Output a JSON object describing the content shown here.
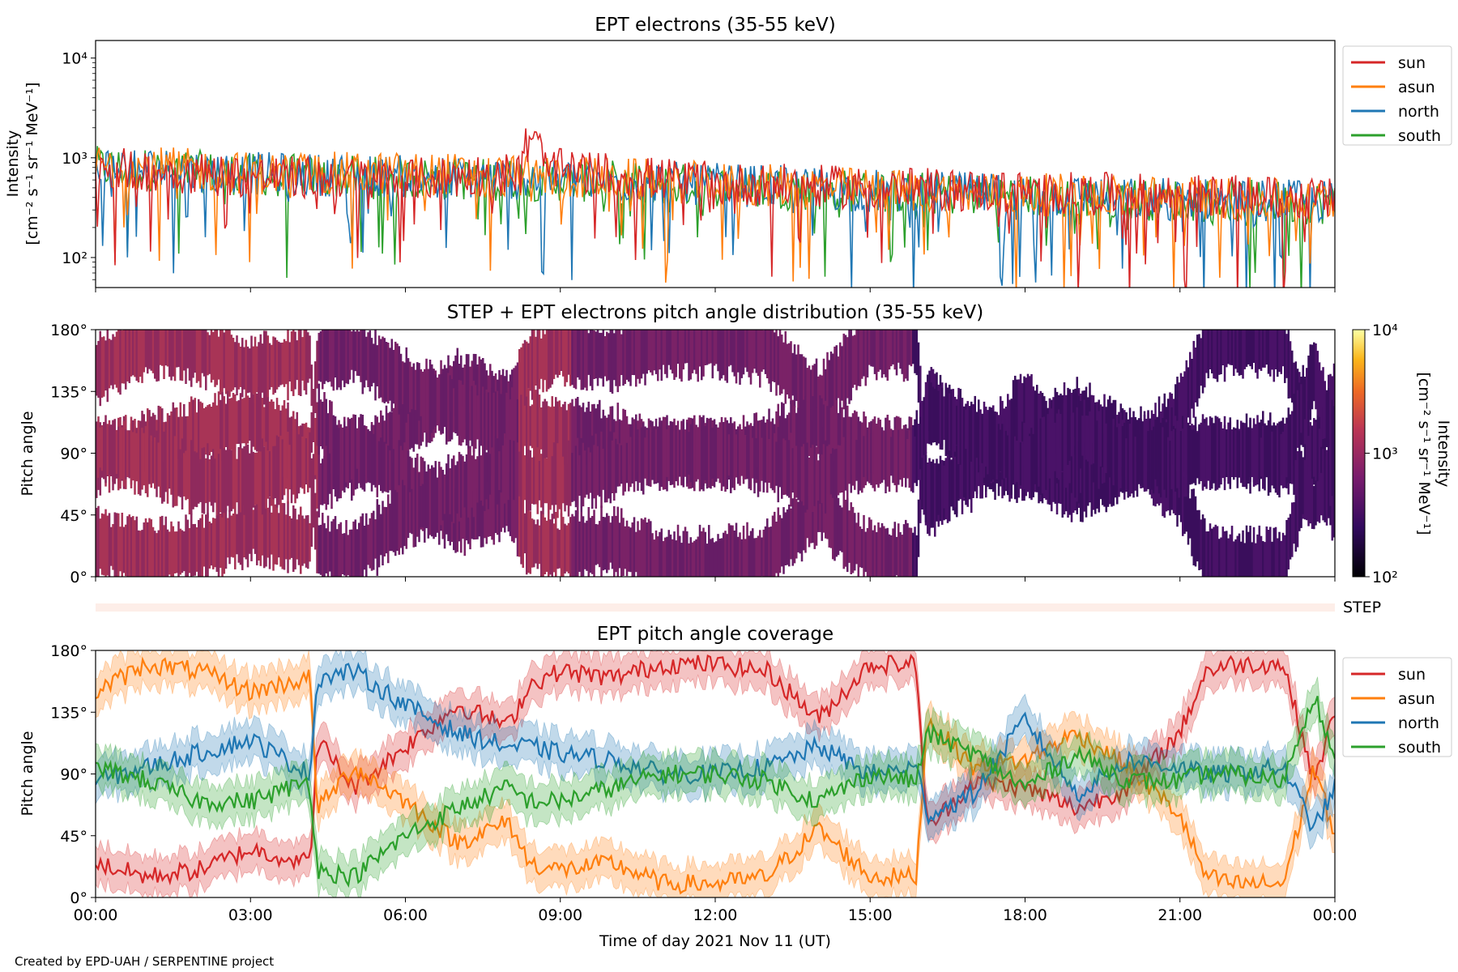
{
  "credit": "Created by EPD-UAH / SERPENTINE project",
  "xlabel": "Time of day 2021 Nov 11 (UT)",
  "x_ticks": [
    "00:00",
    "03:00",
    "06:00",
    "09:00",
    "12:00",
    "15:00",
    "18:00",
    "21:00",
    "00:00"
  ],
  "colors": {
    "sun": "#d62728",
    "asun": "#ff7f0e",
    "north": "#1f77b4",
    "south": "#2ca02c"
  },
  "chart_data": [
    {
      "type": "line",
      "title": "EPT electrons (35-55 keV)",
      "ylabel_line1": "Intensity",
      "ylabel_line2": "[cm⁻² s⁻¹ sr⁻¹ MeV⁻¹]",
      "yscale": "log",
      "ylim": [
        50,
        15000
      ],
      "y_ticks": [
        100,
        1000,
        10000
      ],
      "y_tick_labels": [
        "10²",
        "10³",
        "10⁴"
      ],
      "xlim_hours": [
        0,
        24
      ],
      "legend": [
        "sun",
        "asun",
        "north",
        "south"
      ],
      "legend_position": "outside-right",
      "series": [
        {
          "name": "sun",
          "trend_hours": [
            0,
            3,
            6,
            9,
            12,
            15,
            18,
            21,
            24
          ],
          "trend_values": [
            800,
            650,
            600,
            750,
            550,
            500,
            450,
            420,
            380
          ]
        },
        {
          "name": "asun",
          "trend_hours": [
            0,
            3,
            6,
            9,
            12,
            15,
            18,
            21,
            24
          ],
          "trend_values": [
            850,
            700,
            700,
            650,
            550,
            480,
            430,
            400,
            370
          ]
        },
        {
          "name": "north",
          "trend_hours": [
            0,
            3,
            6,
            9,
            12,
            15,
            18,
            21,
            24
          ],
          "trend_values": [
            820,
            700,
            650,
            600,
            540,
            470,
            420,
            390,
            360
          ]
        },
        {
          "name": "south",
          "trend_hours": [
            0,
            3,
            6,
            9,
            12,
            15,
            18,
            21,
            24
          ],
          "trend_values": [
            800,
            680,
            620,
            600,
            520,
            460,
            410,
            380,
            350
          ]
        }
      ]
    },
    {
      "type": "heatmap",
      "title": "STEP + EPT electrons pitch angle distribution (35-55 keV)",
      "ylabel": "Pitch angle",
      "y_ticks": [
        "0°",
        "45°",
        "90°",
        "135°",
        "180°"
      ],
      "ylim": [
        0,
        180
      ],
      "colorbar_label_line1": "Intensity",
      "colorbar_label_line2": "[cm⁻² s⁻¹ sr⁻¹ MeV⁻¹]",
      "colorbar_range": [
        100,
        10000
      ],
      "colorbar_ticks": [
        "10²",
        "10³",
        "10⁴"
      ],
      "colormap": "inferno"
    },
    {
      "type": "area",
      "strip_label": "STEP"
    },
    {
      "type": "line",
      "title": "EPT pitch angle coverage",
      "ylabel": "Pitch angle",
      "ylim": [
        0,
        180
      ],
      "y_ticks": [
        "0°",
        "45°",
        "90°",
        "135°",
        "180°"
      ],
      "legend": [
        "sun",
        "asun",
        "north",
        "south"
      ],
      "legend_position": "outside-right",
      "series": [
        {
          "name": "sun",
          "x_hours": [
            0,
            1,
            2,
            3,
            4.15,
            4.3,
            5,
            6,
            7,
            8,
            8.4,
            9,
            10,
            11,
            12,
            13,
            14,
            15,
            15.9,
            16.1,
            17,
            18,
            19,
            20,
            21,
            21.5,
            22,
            23,
            23.6,
            24
          ],
          "values": [
            25,
            15,
            20,
            35,
            25,
            115,
            80,
            110,
            140,
            125,
            155,
            165,
            160,
            170,
            170,
            165,
            130,
            170,
            170,
            50,
            85,
            80,
            65,
            80,
            120,
            165,
            170,
            170,
            85,
            135
          ]
        },
        {
          "name": "asun",
          "x_hours": [
            0,
            1,
            2,
            3,
            4.15,
            4.3,
            5,
            6,
            7,
            8,
            8.4,
            9,
            10,
            11,
            12,
            13,
            14,
            15,
            15.9,
            16.1,
            17,
            18,
            19,
            20,
            21,
            21.5,
            22,
            23,
            23.6,
            24
          ],
          "values": [
            150,
            170,
            165,
            150,
            160,
            65,
            95,
            70,
            40,
            55,
            25,
            20,
            25,
            10,
            10,
            15,
            50,
            15,
            15,
            130,
            95,
            100,
            120,
            95,
            60,
            15,
            10,
            10,
            95,
            45
          ]
        },
        {
          "name": "north",
          "x_hours": [
            0,
            1,
            2,
            3,
            4.15,
            4.3,
            5,
            6,
            7,
            8,
            8.4,
            9,
            10,
            11,
            12,
            13,
            14,
            15,
            15.9,
            16.1,
            17,
            18,
            19,
            20,
            21,
            21.5,
            22,
            23,
            23.6,
            24
          ],
          "values": [
            85,
            95,
            105,
            115,
            90,
            160,
            165,
            140,
            120,
            110,
            110,
            105,
            100,
            90,
            90,
            95,
            110,
            90,
            95,
            60,
            75,
            130,
            75,
            100,
            95,
            90,
            90,
            95,
            50,
            80
          ]
        },
        {
          "name": "south",
          "x_hours": [
            0,
            1,
            2,
            3,
            4.15,
            4.3,
            5,
            6,
            7,
            8,
            8.4,
            9,
            10,
            11,
            12,
            13,
            14,
            15,
            15.9,
            16.1,
            17,
            18,
            19,
            20,
            21,
            21.5,
            22,
            23,
            23.6,
            24
          ],
          "values": [
            95,
            85,
            70,
            70,
            85,
            20,
            15,
            45,
            65,
            80,
            70,
            70,
            80,
            90,
            90,
            85,
            70,
            90,
            85,
            120,
            105,
            80,
            105,
            85,
            85,
            90,
            90,
            85,
            150,
            95
          ]
        }
      ]
    }
  ]
}
